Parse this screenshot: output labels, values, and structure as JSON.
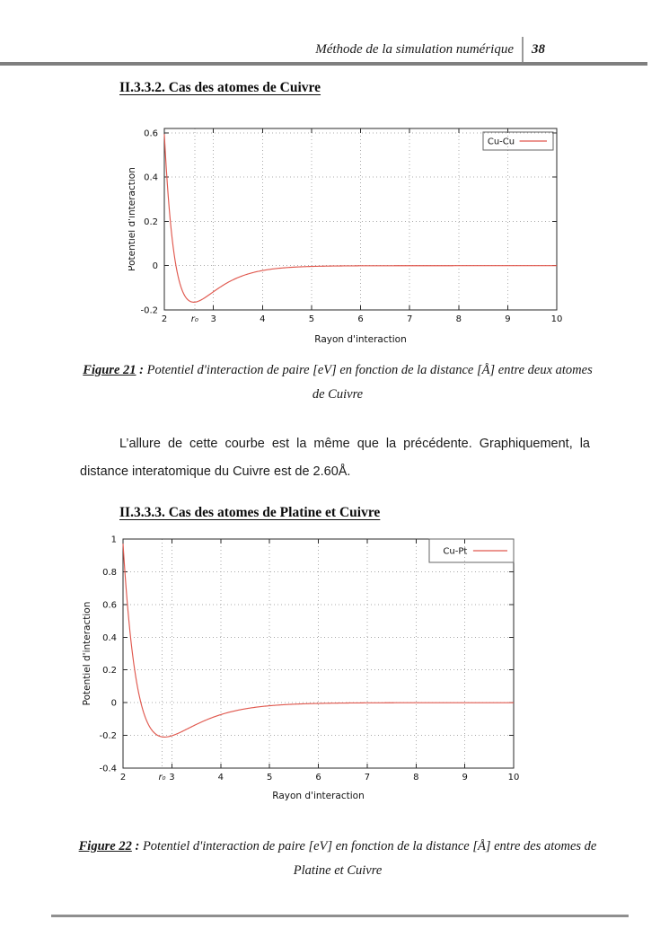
{
  "page": {
    "header": {
      "title": "Méthode de la simulation numérique",
      "page_number": "38"
    },
    "sections": {
      "s1": {
        "heading": "II.3.3.2. Cas des atomes de Cuivre"
      },
      "s2": {
        "heading": "II.3.3.3. Cas des atomes de Platine et Cuivre"
      }
    },
    "figure21": {
      "label": "Figure 21",
      "sep": " : ",
      "caption": "Potentiel d'interaction de paire [eV] en fonction de la distance [Å] entre deux atomes de Cuivre"
    },
    "figure22": {
      "label": "Figure 22",
      "sep": " : ",
      "caption": "Potentiel d'interaction de paire [eV] en fonction de la distance [Å] entre des atomes de Platine et Cuivre"
    },
    "paragraph": "L’allure de cette courbe est la même que la précédente. Graphiquement, la distance interatomique du Cuivre est de 2.60Å."
  },
  "chart_data": [
    {
      "type": "line",
      "legend": "Cu-Cu",
      "xlabel": "Rayon d'interaction",
      "ylabel": "Potentiel d'interaction",
      "xlim": [
        2,
        10
      ],
      "ylim": [
        -0.2,
        0.62
      ],
      "xticks": [
        2,
        3,
        4,
        5,
        6,
        7,
        8,
        9,
        10
      ],
      "yticks": [
        -0.2,
        0,
        0.2,
        0.4,
        0.6
      ],
      "grid": true,
      "legend_position": "top-right",
      "line_color": "#e0584e",
      "r0_marker": {
        "x": 2.62,
        "label": "r₀"
      },
      "series": [
        {
          "name": "Cu-Cu",
          "model": "morse",
          "well_depth_eV": 0.165,
          "r0_A": 2.6,
          "alpha": 1.91,
          "points": [
            [
              2.0,
              0.6
            ],
            [
              2.24,
              0.0
            ],
            [
              2.6,
              -0.165
            ],
            [
              3.0,
              -0.13
            ],
            [
              3.5,
              -0.055
            ],
            [
              4.0,
              -0.025
            ],
            [
              4.5,
              -0.01
            ],
            [
              5.0,
              0.0
            ],
            [
              6,
              0
            ],
            [
              7,
              0
            ],
            [
              8,
              0
            ],
            [
              9,
              0
            ],
            [
              10,
              0
            ]
          ]
        }
      ]
    },
    {
      "type": "line",
      "legend": "Cu-Pt",
      "xlabel": "Rayon d'interaction",
      "ylabel": "Potentiel d'interaction",
      "xlim": [
        2,
        10
      ],
      "ylim": [
        -0.4,
        1.0
      ],
      "xticks": [
        2,
        3,
        4,
        5,
        6,
        7,
        8,
        9,
        10
      ],
      "yticks": [
        -0.4,
        -0.2,
        0,
        0.2,
        0.4,
        0.6,
        0.8,
        1
      ],
      "grid": true,
      "legend_position": "top-right",
      "line_color": "#e0584e",
      "r0_marker": {
        "x": 2.8,
        "label": "r₀"
      },
      "series": [
        {
          "name": "Cu-Pt",
          "model": "morse",
          "well_depth_eV": 0.21,
          "r0_A": 2.85,
          "alpha": 1.43,
          "points": [
            [
              2.0,
              0.97
            ],
            [
              2.4,
              0.0
            ],
            [
              2.85,
              -0.21
            ],
            [
              3.5,
              -0.12
            ],
            [
              4.0,
              -0.06
            ],
            [
              4.5,
              -0.03
            ],
            [
              5.0,
              -0.01
            ],
            [
              5.2,
              0.0
            ],
            [
              6,
              0
            ],
            [
              7,
              0
            ],
            [
              8,
              0
            ],
            [
              9,
              0
            ],
            [
              10,
              0
            ]
          ]
        }
      ]
    }
  ]
}
